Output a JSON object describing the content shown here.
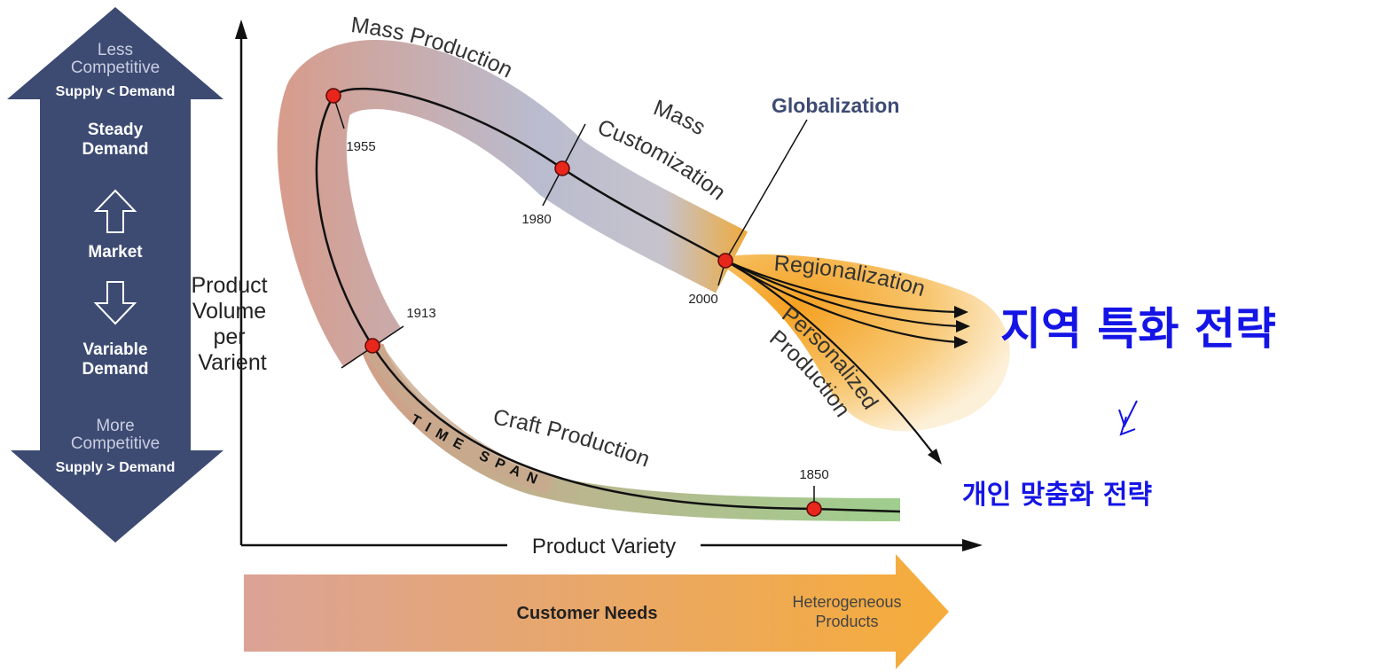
{
  "market_arrow": {
    "top": [
      "Less",
      "Competitive"
    ],
    "top_bold": "Supply < Demand",
    "upper": [
      "Steady",
      "Demand"
    ],
    "center": "Market",
    "lower": [
      "Variable",
      "Demand"
    ],
    "bottom": [
      "More",
      "Competitive"
    ],
    "bottom_bold": "Supply > Demand"
  },
  "y_axis_label": [
    "Product",
    "Volume",
    "per",
    "Varient"
  ],
  "x_axis_label": "Product Variety",
  "customer_arrow": {
    "label": "Customer Needs",
    "end": [
      "Heterogeneous",
      "Products"
    ]
  },
  "stages": {
    "mass_production": "Mass Production",
    "mass_customization": [
      "Mass",
      "Customization"
    ],
    "globalization": "Globalization",
    "regionalization": "Regionalization",
    "personalized_production": [
      "Personalized",
      "Production"
    ],
    "craft_production": "Craft Production",
    "time_span": "TIME SPAN"
  },
  "years": {
    "y1955": "1955",
    "y1980": "1980",
    "y2000": "2000",
    "y1913": "1913",
    "y1850": "1850"
  },
  "annotations": {
    "regional": "지역 특화 전략",
    "personal": "개인 맞춤화 전략"
  }
}
